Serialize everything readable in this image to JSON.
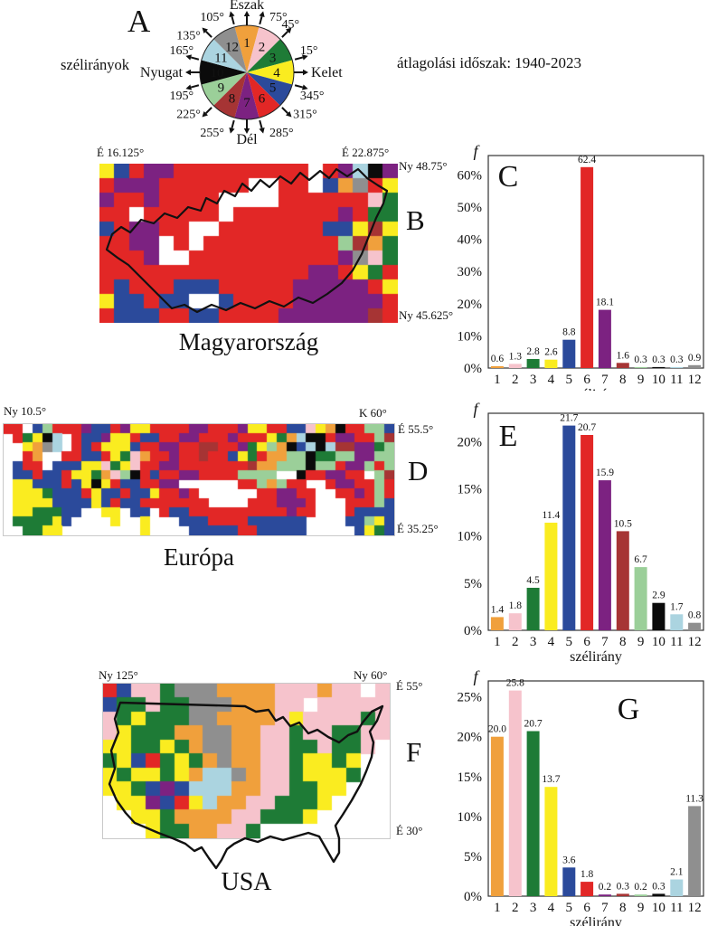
{
  "header": {
    "panel_a_label": "A",
    "wind_directions_label": "szélirányok",
    "period_label": "átlagolási időszak: 1940-2023"
  },
  "wind_direction_colors": [
    "#F0A03C",
    "#F6C3CC",
    "#1E7B36",
    "#FAEC20",
    "#2B4A9B",
    "#E22726",
    "#7C2281",
    "#A63434",
    "#9BCF99",
    "#0B0B0B",
    "#ABD4E0",
    "#8F8F8F"
  ],
  "rose": {
    "panel": "A",
    "cardinals": {
      "north": "Észak",
      "east": "Kelet",
      "south": "Dél",
      "west": "Nyugat"
    },
    "sectors": [
      {
        "n": "1",
        "color": "#F0A03C",
        "label_color": "#ffffff"
      },
      {
        "n": "2",
        "color": "#F6C3CC",
        "label_color": "#ffffff"
      },
      {
        "n": "3",
        "color": "#1E7B36",
        "label_color": "#ffffff"
      },
      {
        "n": "4",
        "color": "#FAEC20",
        "label_color": "#111111"
      },
      {
        "n": "5",
        "color": "#2B4A9B",
        "label_color": "#ffffff"
      },
      {
        "n": "6",
        "color": "#E22726",
        "label_color": "#ffffff"
      },
      {
        "n": "7",
        "color": "#7C2281",
        "label_color": "#ffffff"
      },
      {
        "n": "8",
        "color": "#A63434",
        "label_color": "#ffffff"
      },
      {
        "n": "9",
        "color": "#9BCF99",
        "label_color": "#ffffff"
      },
      {
        "n": "10",
        "color": "#0B0B0B",
        "label_color": "#ffffff"
      },
      {
        "n": "11",
        "color": "#ABD4E0",
        "label_color": "#111111"
      },
      {
        "n": "12",
        "color": "#8F8F8F",
        "label_color": "#ffffff"
      }
    ],
    "boundary_labels": [
      {
        "compass": 15,
        "label": "75°"
      },
      {
        "compass": 45,
        "label": "45°"
      },
      {
        "compass": 75,
        "label": "15°"
      },
      {
        "compass": 105,
        "label": "345°"
      },
      {
        "compass": 135,
        "label": "315°"
      },
      {
        "compass": 165,
        "label": "285°"
      },
      {
        "compass": 195,
        "label": "255°"
      },
      {
        "compass": 225,
        "label": "225°"
      },
      {
        "compass": 255,
        "label": "195°"
      },
      {
        "compass": 285,
        "label": "165°"
      },
      {
        "compass": 315,
        "label": "135°"
      },
      {
        "compass": 345,
        "label": "105°"
      }
    ]
  },
  "panels": {
    "B": {
      "letter": "B",
      "title": "Magyarország",
      "coords": {
        "top_left": "É 16.125°",
        "top_right": "É 22.875°",
        "right_top": "Ny 48.75°",
        "right_bottom": "Ny 45.625°"
      },
      "grid_rows": [
        "45677666666666.67ba7",
        "6777666666..66.51c64",
        "76676666....66666623",
        "66.66666.66666667633",
        "567766..666666655484",
        "6677.6.6666666669813",
        "6667..66666666667c23",
        "66666666666666776436",
        "65666555666667777764",
        "455655..566667777776",
        "65556655666677777786"
      ]
    },
    "D": {
      "letter": "D",
      "title": "Európa",
      "coords": {
        "top_left": "Ny 10.5°",
        "top_right": "K 60°",
        "right_top": "É 55.5°",
        "right_bottom": "É 35.25°"
      },
      "grid_rows": [
        "66.5966675567446666776667446655241a66995",
        ".634ab.65574465566776667666431baa6776698",
        "..41cb.6564445667766886673491a5bab887739",
        "..61..6655643216676686654361199a33997799",
        ".566.55544234266776666666811999a99677969",
        ".556556443129a65667766669999..a667766.98",
        ".44555654a46556677......6691966..6776696",
        ".4443555645565546676......667766..667696",
        ".44445555456556666666....6667776...66695",
        ".4433355..44.55.6556666666666766...65555",
        ".333345....4..4...5556666555555....55945",
        "..3344........4....555556655555.....5435"
      ]
    },
    "F": {
      "letter": "F",
      "title": "USA",
      "coords": {
        "top_left": "Ny 125°",
        "top_right": "Ny 60°",
        "right_top": "É 55°",
        "right_bottom": "É 30°"
      },
      "grid_rows": [
        "65223ccc1111222122.2",
        "533233ccc11122.22222",
        "234333cc111124222232",
        "2433311cc11223223322",
        "4433431cc1122332332.",
        "34563431c112234434..",
        "4344341bbc12234443..",
        "443575bbb11223344...",
        ".447564b11223334....",
        "..4431111223334.....",
        "...43311223........."
      ]
    }
  },
  "chart_data": [
    {
      "type": "bar",
      "panel": "C",
      "region": "Magyarország",
      "categories": [
        1,
        2,
        3,
        4,
        5,
        6,
        7,
        8,
        9,
        10,
        11,
        12
      ],
      "values": [
        0.6,
        1.3,
        2.8,
        2.6,
        8.8,
        62.4,
        18.1,
        1.6,
        0.3,
        0.3,
        0.3,
        0.9
      ],
      "value_labels": [
        "0.6",
        "1.3",
        "2.8",
        "2.6",
        "8.8",
        "62.4",
        "18.1",
        "1.6",
        "0.3",
        "0.3",
        "0.3",
        "0.9"
      ],
      "xlabel": "szélirány",
      "ylabel": "f",
      "y_tick_values": [
        0,
        10,
        20,
        30,
        40,
        50,
        60
      ],
      "y_tick_labels": [
        "0%",
        "10%",
        "20%",
        "30%",
        "40%",
        "50%",
        "60%"
      ],
      "ylim": [
        0,
        66
      ],
      "grid": false,
      "legend": "none"
    },
    {
      "type": "bar",
      "panel": "E",
      "region": "Európa",
      "categories": [
        1,
        2,
        3,
        4,
        5,
        6,
        7,
        8,
        9,
        10,
        11,
        12
      ],
      "values": [
        1.4,
        1.8,
        4.5,
        11.4,
        21.7,
        20.7,
        15.9,
        10.5,
        6.7,
        2.9,
        1.7,
        0.8
      ],
      "value_labels": [
        "1.4",
        "1.8",
        "4.5",
        "11.4",
        "21.7",
        "20.7",
        "15.9",
        "10.5",
        "6.7",
        "2.9",
        "1.7",
        "0.8"
      ],
      "xlabel": "szélirány",
      "ylabel": "f",
      "y_tick_values": [
        0,
        5,
        10,
        15,
        20
      ],
      "y_tick_labels": [
        "0%",
        "5%",
        "10%",
        "15%",
        "20%"
      ],
      "ylim": [
        0,
        23
      ],
      "grid": false,
      "legend": "none"
    },
    {
      "type": "bar",
      "panel": "G",
      "region": "USA",
      "categories": [
        1,
        2,
        3,
        4,
        5,
        6,
        7,
        8,
        9,
        10,
        11,
        12
      ],
      "values": [
        20.0,
        25.8,
        20.7,
        13.7,
        3.6,
        1.8,
        0.2,
        0.3,
        0.2,
        0.3,
        2.1,
        11.3
      ],
      "value_labels": [
        "20.0",
        "25.8",
        "20.7",
        "13.7",
        "3.6",
        "1.8",
        "0.2",
        "0.3",
        "0.2",
        "0.3",
        "2.1",
        "11.3"
      ],
      "xlabel": "szélirány",
      "ylabel": "f",
      "y_tick_values": [
        0,
        5,
        10,
        15,
        20,
        25
      ],
      "y_tick_labels": [
        "0%",
        "5%",
        "10%",
        "15%",
        "20%",
        "25%"
      ],
      "ylim": [
        0,
        27
      ],
      "grid": false,
      "legend": "none"
    }
  ]
}
